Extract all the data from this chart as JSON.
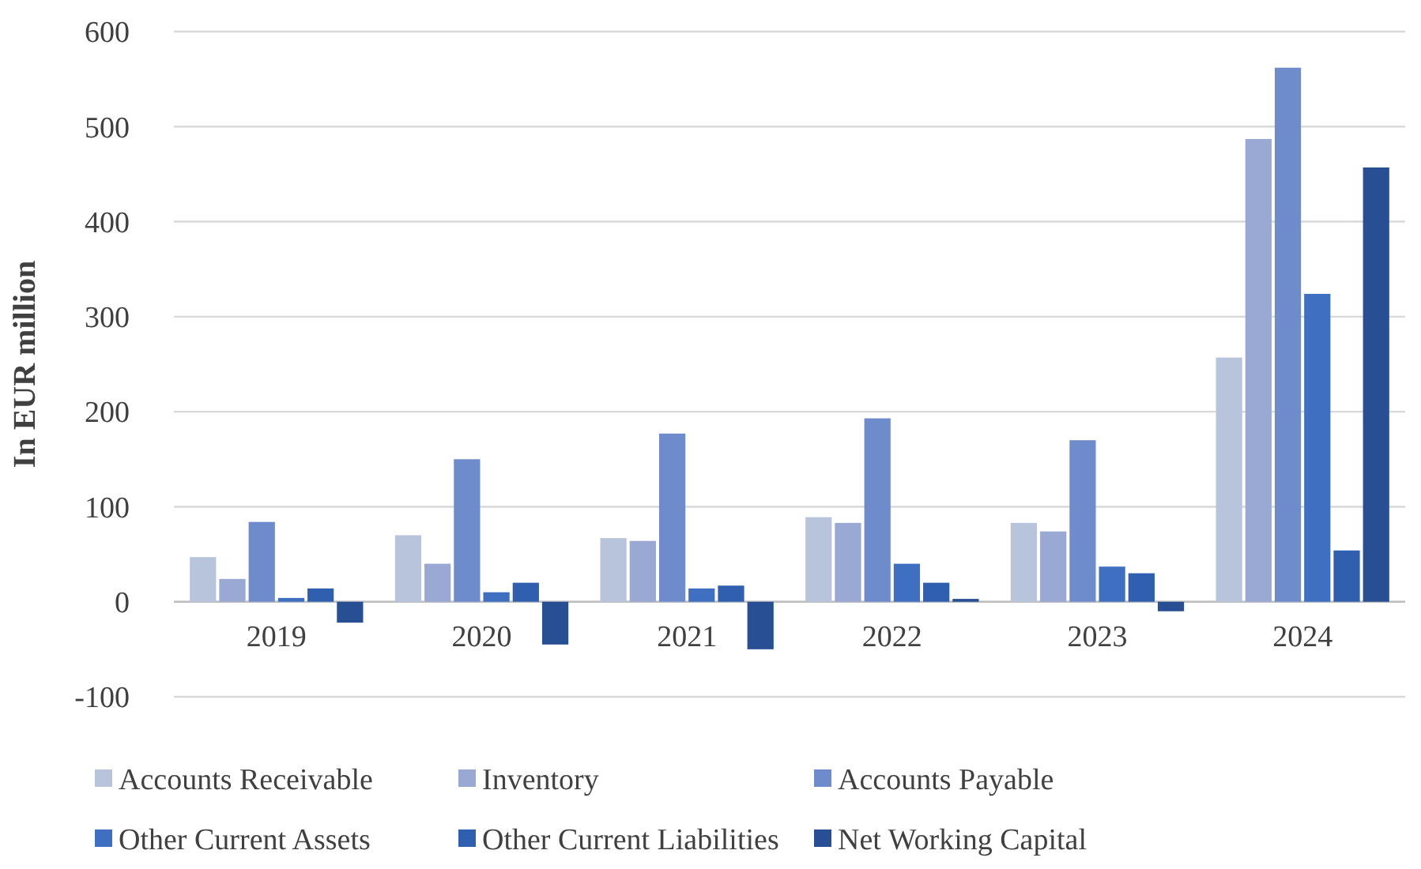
{
  "chart_data": {
    "type": "bar",
    "ylabel": "In EUR million",
    "categories": [
      "2019",
      "2020",
      "2021",
      "2022",
      "2023",
      "2024"
    ],
    "series": [
      {
        "name": "Accounts Receivable",
        "color": "#b8c4dc",
        "values": [
          47,
          70,
          67,
          89,
          83,
          257
        ]
      },
      {
        "name": "Inventory",
        "color": "#9aa8d4",
        "values": [
          24,
          40,
          64,
          83,
          74,
          487
        ]
      },
      {
        "name": "Accounts Payable",
        "color": "#6e8ccc",
        "values": [
          84,
          150,
          177,
          193,
          170,
          562
        ]
      },
      {
        "name": "Other Current Assets",
        "color": "#3f6fc0",
        "values": [
          4,
          10,
          14,
          40,
          37,
          324
        ]
      },
      {
        "name": "Other Current Liabilities",
        "color": "#2f5fae",
        "values": [
          14,
          20,
          17,
          20,
          30,
          54
        ]
      },
      {
        "name": "Net Working Capital",
        "color": "#284f94",
        "values": [
          -22,
          -45,
          -50,
          3,
          -10,
          457
        ]
      }
    ],
    "ylim": [
      -100,
      600
    ],
    "yticks": [
      -100,
      0,
      100,
      200,
      300,
      400,
      500,
      600
    ],
    "grid": "y",
    "legend": "bottom"
  }
}
